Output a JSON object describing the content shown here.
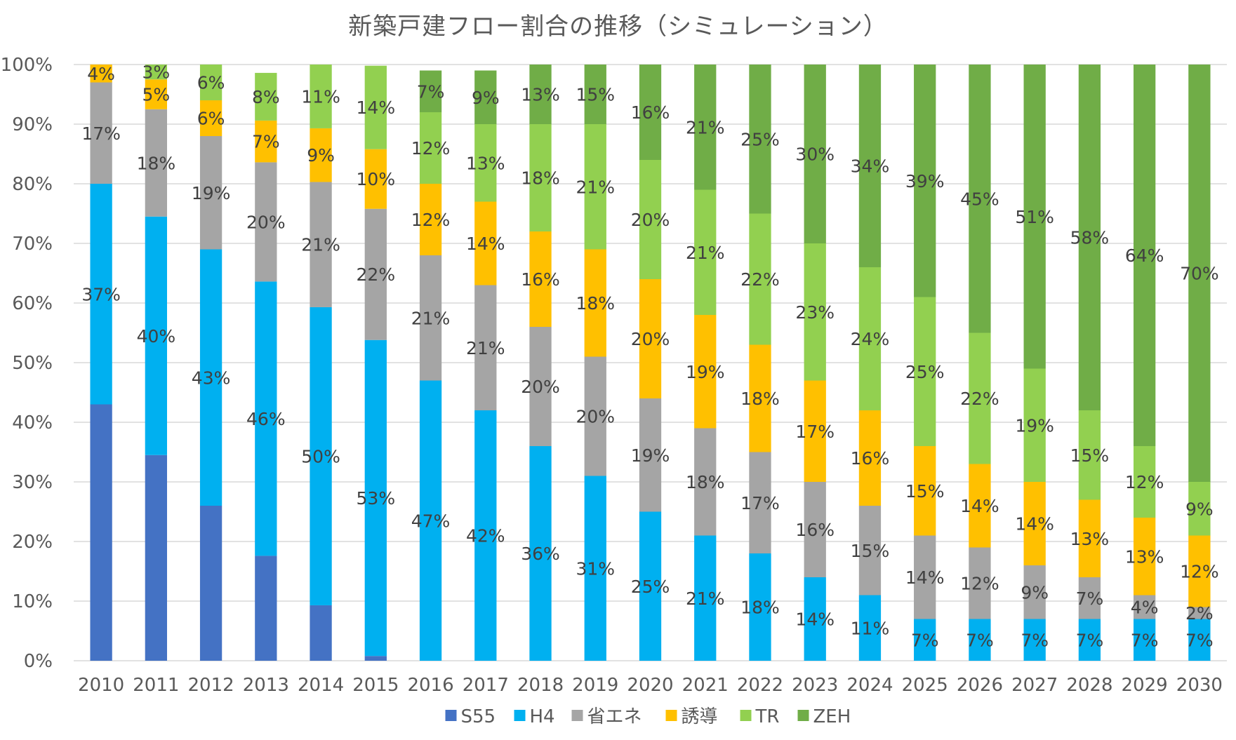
{
  "chart_data": {
    "type": "bar",
    "stacked": true,
    "title": "新築戸建フロー割合の推移（シミュレーション）",
    "xlabel": "",
    "ylabel": "",
    "ylim": [
      0,
      100
    ],
    "y_ticks": [
      "0%",
      "10%",
      "20%",
      "30%",
      "40%",
      "50%",
      "60%",
      "70%",
      "80%",
      "90%",
      "100%"
    ],
    "grid": true,
    "legend_position": "bottom",
    "categories": [
      "2010",
      "2011",
      "2012",
      "2013",
      "2014",
      "2015",
      "2016",
      "2017",
      "2018",
      "2019",
      "2020",
      "2021",
      "2022",
      "2023",
      "2024",
      "2025",
      "2026",
      "2027",
      "2028",
      "2029",
      "2030"
    ],
    "series": [
      {
        "name": "S55",
        "color": "#4472C4",
        "show_labels": false,
        "values": [
          43,
          34.5,
          26,
          17.6,
          9.3,
          0.8,
          0,
          0,
          0,
          0,
          0,
          0,
          0,
          0,
          0,
          0,
          0,
          0,
          0,
          0,
          0
        ]
      },
      {
        "name": "H4",
        "color": "#00B0F0",
        "show_labels": true,
        "values": [
          37,
          40,
          43,
          46,
          50,
          53,
          47,
          42,
          36,
          31,
          25,
          21,
          18,
          14,
          11,
          7,
          7,
          7,
          7,
          7,
          7
        ]
      },
      {
        "name": "省エネ",
        "color": "#A5A5A5",
        "show_labels": true,
        "values": [
          17,
          18,
          19,
          20,
          21,
          22,
          21,
          21,
          20,
          20,
          19,
          18,
          17,
          16,
          15,
          14,
          12,
          9,
          7,
          4,
          2
        ]
      },
      {
        "name": "誘導",
        "color": "#FFC000",
        "show_labels": true,
        "values": [
          4,
          5,
          6,
          7,
          9,
          10,
          12,
          14,
          16,
          18,
          20,
          19,
          18,
          17,
          16,
          15,
          14,
          14,
          13,
          13,
          12
        ]
      },
      {
        "name": "TR",
        "color": "#92D050",
        "show_labels": true,
        "values": [
          0.3,
          3,
          6,
          8,
          11,
          14,
          12,
          13,
          18,
          21,
          20,
          21,
          22,
          23,
          24,
          25,
          22,
          19,
          15,
          12,
          9
        ]
      },
      {
        "name": "ZEH",
        "color": "#70AD47",
        "show_labels": true,
        "values": [
          0,
          0,
          0,
          0,
          0,
          0,
          7,
          9,
          13,
          15,
          16,
          21,
          25,
          30,
          34,
          39,
          45,
          51,
          58,
          64,
          70
        ]
      }
    ]
  }
}
